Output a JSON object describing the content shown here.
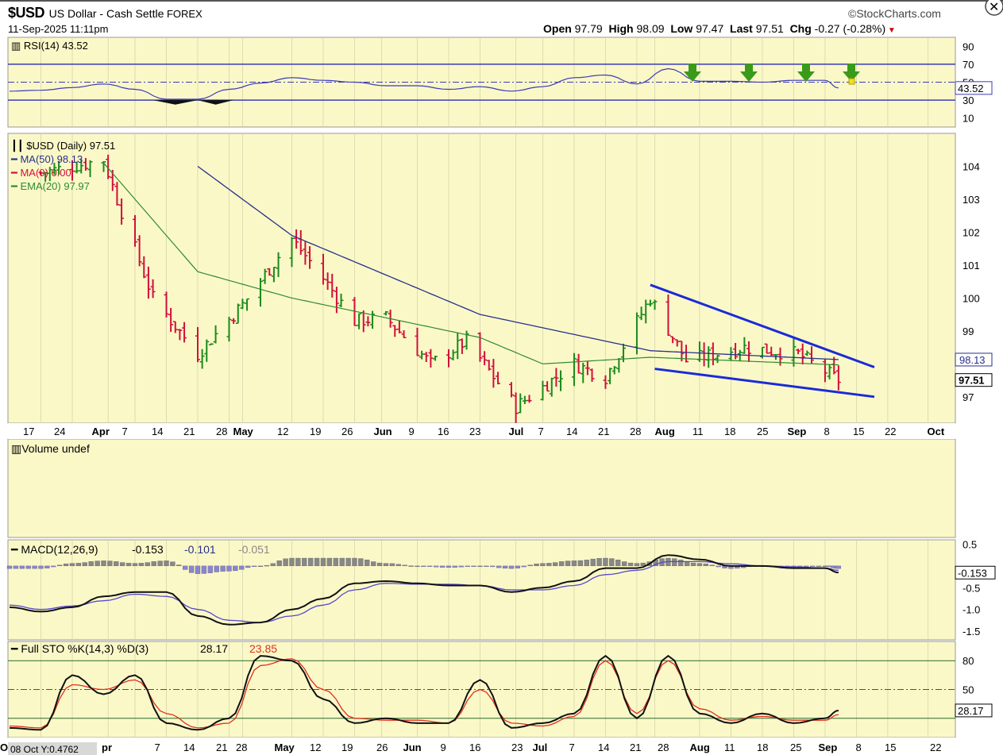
{
  "header": {
    "symbol": "$USD",
    "name": "US Dollar - Cash Settle",
    "exchange": "FOREX",
    "date": "11-Sep-2025 11:11pm",
    "brand": "©StockCharts.com",
    "open_label": "Open",
    "open": "97.79",
    "high_label": "High",
    "high": "98.09",
    "low_label": "Low",
    "low": "97.47",
    "last_label": "Last",
    "last": "97.51",
    "chg_label": "Chg",
    "chg": "-0.27 (-0.28%)"
  },
  "colors": {
    "panel_bg": "#fbf8c8",
    "up_bar": "#1a8a1a",
    "down_bar": "#d0103a",
    "ma50": "#26308a",
    "ema20": "#2e8b2e",
    "trendline": "#1a2bd8",
    "rsi_line": "#3b3bb8",
    "macd_line": "#111111",
    "macd_signal": "#5548d0",
    "histogram": "#8a84d0",
    "sto_k": "#111111",
    "sto_d": "#e0301e",
    "arrow": "#3a9a1a"
  },
  "chart_data": [
    {
      "type": "line",
      "title": "RSI(14) 43.52",
      "yticks": [
        90,
        70,
        50,
        30,
        10
      ],
      "ylim": [
        0,
        100
      ],
      "reference_lines": [
        70,
        50,
        30
      ],
      "last_value_label": "43.52",
      "signal_arrows": 4,
      "x_dates": [
        "2025-03-10",
        "2025-03-17",
        "2025-03-24",
        "2025-03-31",
        "2025-04-07",
        "2025-04-14",
        "2025-04-21",
        "2025-04-28",
        "2025-05-05",
        "2025-05-12",
        "2025-05-19",
        "2025-05-26",
        "2025-06-02",
        "2025-06-09",
        "2025-06-16",
        "2025-06-23",
        "2025-06-30",
        "2025-07-07",
        "2025-07-14",
        "2025-07-21",
        "2025-07-28",
        "2025-08-04",
        "2025-08-11",
        "2025-08-18",
        "2025-08-25",
        "2025-09-01",
        "2025-09-08",
        "2025-09-11"
      ],
      "values": [
        40,
        41,
        44,
        48,
        42,
        31,
        31,
        42,
        49,
        55,
        52,
        50,
        46,
        46,
        42,
        45,
        40,
        45,
        55,
        58,
        48,
        65,
        51,
        51,
        50,
        52,
        52,
        43.5
      ]
    },
    {
      "type": "candlestick",
      "title": "$USD (Daily) 97.51",
      "legend": [
        {
          "name": "$USD (Daily) 97.51",
          "color": "#1a8a1a"
        },
        {
          "name": "MA(50) 98.13",
          "color": "#26308a"
        },
        {
          "name": "MA(0) 0.00",
          "color": "#d0103a"
        },
        {
          "name": "EMA(20) 97.97",
          "color": "#2e8b2e"
        }
      ],
      "yticks": [
        104,
        103,
        102,
        101,
        100,
        99,
        97
      ],
      "ylim": [
        96.2,
        105.0
      ],
      "price_labels": [
        "98.13",
        "97.51"
      ],
      "xtick_labels": [
        "17",
        "24",
        "Apr",
        "7",
        "14",
        "21",
        "28",
        "May",
        "12",
        "19",
        "26",
        "Jun",
        "9",
        "16",
        "23",
        "Jul",
        "7",
        "14",
        "21",
        "28",
        "Aug",
        "11",
        "18",
        "25",
        "Sep",
        "8",
        "15",
        "22",
        "Oct"
      ],
      "close_key_points": [
        {
          "date": "2025-03-17",
          "close": 103.8
        },
        {
          "date": "2025-03-31",
          "close": 104.2
        },
        {
          "date": "2025-04-03",
          "close": 103.0
        },
        {
          "date": "2025-04-11",
          "close": 100.0
        },
        {
          "date": "2025-04-21",
          "close": 98.3
        },
        {
          "date": "2025-05-01",
          "close": 99.8
        },
        {
          "date": "2025-05-12",
          "close": 101.8
        },
        {
          "date": "2025-05-19",
          "close": 100.6
        },
        {
          "date": "2025-05-26",
          "close": 99.3
        },
        {
          "date": "2025-06-02",
          "close": 99.4
        },
        {
          "date": "2025-06-12",
          "close": 98.0
        },
        {
          "date": "2025-06-20",
          "close": 98.7
        },
        {
          "date": "2025-07-01",
          "close": 96.7
        },
        {
          "date": "2025-07-14",
          "close": 98.0
        },
        {
          "date": "2025-07-21",
          "close": 97.6
        },
        {
          "date": "2025-07-31",
          "close": 100.0
        },
        {
          "date": "2025-08-08",
          "close": 98.1
        },
        {
          "date": "2025-08-21",
          "close": 98.5
        },
        {
          "date": "2025-09-02",
          "close": 98.3
        },
        {
          "date": "2025-09-11",
          "close": 97.51
        }
      ],
      "ma50_key_points": [
        {
          "date": "2025-04-21",
          "value": 104.0
        },
        {
          "date": "2025-05-12",
          "value": 101.9
        },
        {
          "date": "2025-06-23",
          "value": 99.5
        },
        {
          "date": "2025-07-31",
          "value": 98.4
        },
        {
          "date": "2025-09-11",
          "value": 98.13
        }
      ],
      "ema20_key_points": [
        {
          "date": "2025-03-31",
          "value": 104.1
        },
        {
          "date": "2025-04-21",
          "value": 100.8
        },
        {
          "date": "2025-05-12",
          "value": 100.0
        },
        {
          "date": "2025-06-23",
          "value": 98.8
        },
        {
          "date": "2025-07-07",
          "value": 98.0
        },
        {
          "date": "2025-07-31",
          "value": 98.2
        },
        {
          "date": "2025-09-11",
          "value": 97.97
        }
      ],
      "trendlines": [
        {
          "start": {
            "date": "2025-07-31",
            "value": 100.4
          },
          "end": {
            "date": "2025-09-19",
            "value": 97.9
          }
        },
        {
          "start": {
            "date": "2025-08-01",
            "value": 97.85
          },
          "end": {
            "date": "2025-09-19",
            "value": 97.0
          }
        }
      ]
    },
    {
      "type": "bar",
      "title": "Volume undef",
      "values": []
    },
    {
      "type": "line",
      "title": "MACD(12,26,9)",
      "legend": [
        {
          "name": "-0.153",
          "color": "#111111"
        },
        {
          "name": "-0.101",
          "color": "#26308a"
        },
        {
          "name": "-0.051",
          "color": "#8a84d0"
        }
      ],
      "yticks": [
        0.5,
        -0.5,
        -1.0,
        -1.5
      ],
      "ylim": [
        -1.7,
        0.6
      ],
      "last_value_label": "-0.153",
      "x_dates": [
        "2025-03-10",
        "2025-03-17",
        "2025-03-24",
        "2025-03-31",
        "2025-04-07",
        "2025-04-14",
        "2025-04-21",
        "2025-04-28",
        "2025-05-05",
        "2025-05-12",
        "2025-05-19",
        "2025-05-26",
        "2025-06-02",
        "2025-06-09",
        "2025-06-16",
        "2025-06-23",
        "2025-06-30",
        "2025-07-07",
        "2025-07-14",
        "2025-07-21",
        "2025-07-28",
        "2025-08-04",
        "2025-08-11",
        "2025-08-18",
        "2025-08-25",
        "2025-09-01",
        "2025-09-08",
        "2025-09-11"
      ],
      "series": [
        {
          "name": "MACD",
          "values": [
            -0.95,
            -1.05,
            -0.95,
            -0.7,
            -0.6,
            -0.6,
            -1.15,
            -1.35,
            -1.3,
            -1.0,
            -0.75,
            -0.4,
            -0.35,
            -0.4,
            -0.45,
            -0.45,
            -0.6,
            -0.5,
            -0.35,
            -0.05,
            -0.05,
            0.25,
            0.15,
            0.0,
            0.0,
            -0.05,
            -0.05,
            -0.153
          ]
        },
        {
          "name": "Signal",
          "values": [
            -0.9,
            -1.0,
            -0.92,
            -0.8,
            -0.65,
            -0.7,
            -1.0,
            -1.25,
            -1.3,
            -1.15,
            -0.9,
            -0.55,
            -0.4,
            -0.42,
            -0.42,
            -0.45,
            -0.55,
            -0.55,
            -0.45,
            -0.2,
            -0.1,
            0.1,
            0.1,
            0.05,
            0.0,
            -0.02,
            -0.05,
            -0.101
          ]
        },
        {
          "name": "Histogram",
          "values": [
            -0.05,
            -0.05,
            0.05,
            0.1,
            0.05,
            0.1,
            -0.15,
            -0.1,
            0.0,
            0.15,
            0.15,
            0.15,
            0.05,
            0.0,
            -0.03,
            0.0,
            -0.05,
            0.05,
            0.1,
            0.15,
            0.05,
            0.15,
            0.05,
            -0.05,
            0.0,
            -0.03,
            0.0,
            -0.051
          ]
        }
      ]
    },
    {
      "type": "line",
      "title": "Full STO %K(14,3) %D(3)",
      "legend": [
        {
          "name": "28.17",
          "color": "#111111"
        },
        {
          "name": "23.85",
          "color": "#e0301e"
        }
      ],
      "yticks": [
        80,
        50
      ],
      "ylim": [
        0,
        100
      ],
      "reference_lines": [
        80,
        50,
        20
      ],
      "last_value_label": "28.17",
      "cursor_readout": "08 Oct Y:0.4762",
      "xtick_labels": [
        "pr",
        "7",
        "14",
        "21",
        "28",
        "May",
        "12",
        "19",
        "26",
        "Jun",
        "9",
        "16",
        "23",
        "Jul",
        "7",
        "14",
        "21",
        "28",
        "Aug",
        "11",
        "18",
        "25",
        "Sep",
        "8",
        "15",
        "22",
        "Oct"
      ],
      "x_dates": [
        "2025-03-10",
        "2025-03-17",
        "2025-03-24",
        "2025-03-31",
        "2025-04-07",
        "2025-04-14",
        "2025-04-21",
        "2025-04-28",
        "2025-05-05",
        "2025-05-12",
        "2025-05-19",
        "2025-05-26",
        "2025-06-02",
        "2025-06-09",
        "2025-06-16",
        "2025-06-23",
        "2025-06-30",
        "2025-07-07",
        "2025-07-14",
        "2025-07-21",
        "2025-07-28",
        "2025-08-04",
        "2025-08-11",
        "2025-08-18",
        "2025-08-25",
        "2025-09-01",
        "2025-09-08",
        "2025-09-11"
      ],
      "series": [
        {
          "name": "%K",
          "values": [
            10,
            8,
            65,
            45,
            65,
            15,
            8,
            20,
            85,
            80,
            40,
            15,
            20,
            15,
            15,
            60,
            10,
            15,
            25,
            85,
            20,
            85,
            25,
            15,
            25,
            15,
            20,
            28.17
          ]
        },
        {
          "name": "%D",
          "values": [
            12,
            10,
            55,
            50,
            60,
            25,
            10,
            15,
            75,
            82,
            50,
            20,
            18,
            18,
            15,
            50,
            15,
            12,
            22,
            80,
            25,
            80,
            30,
            18,
            22,
            18,
            18,
            23.85
          ]
        }
      ]
    }
  ]
}
